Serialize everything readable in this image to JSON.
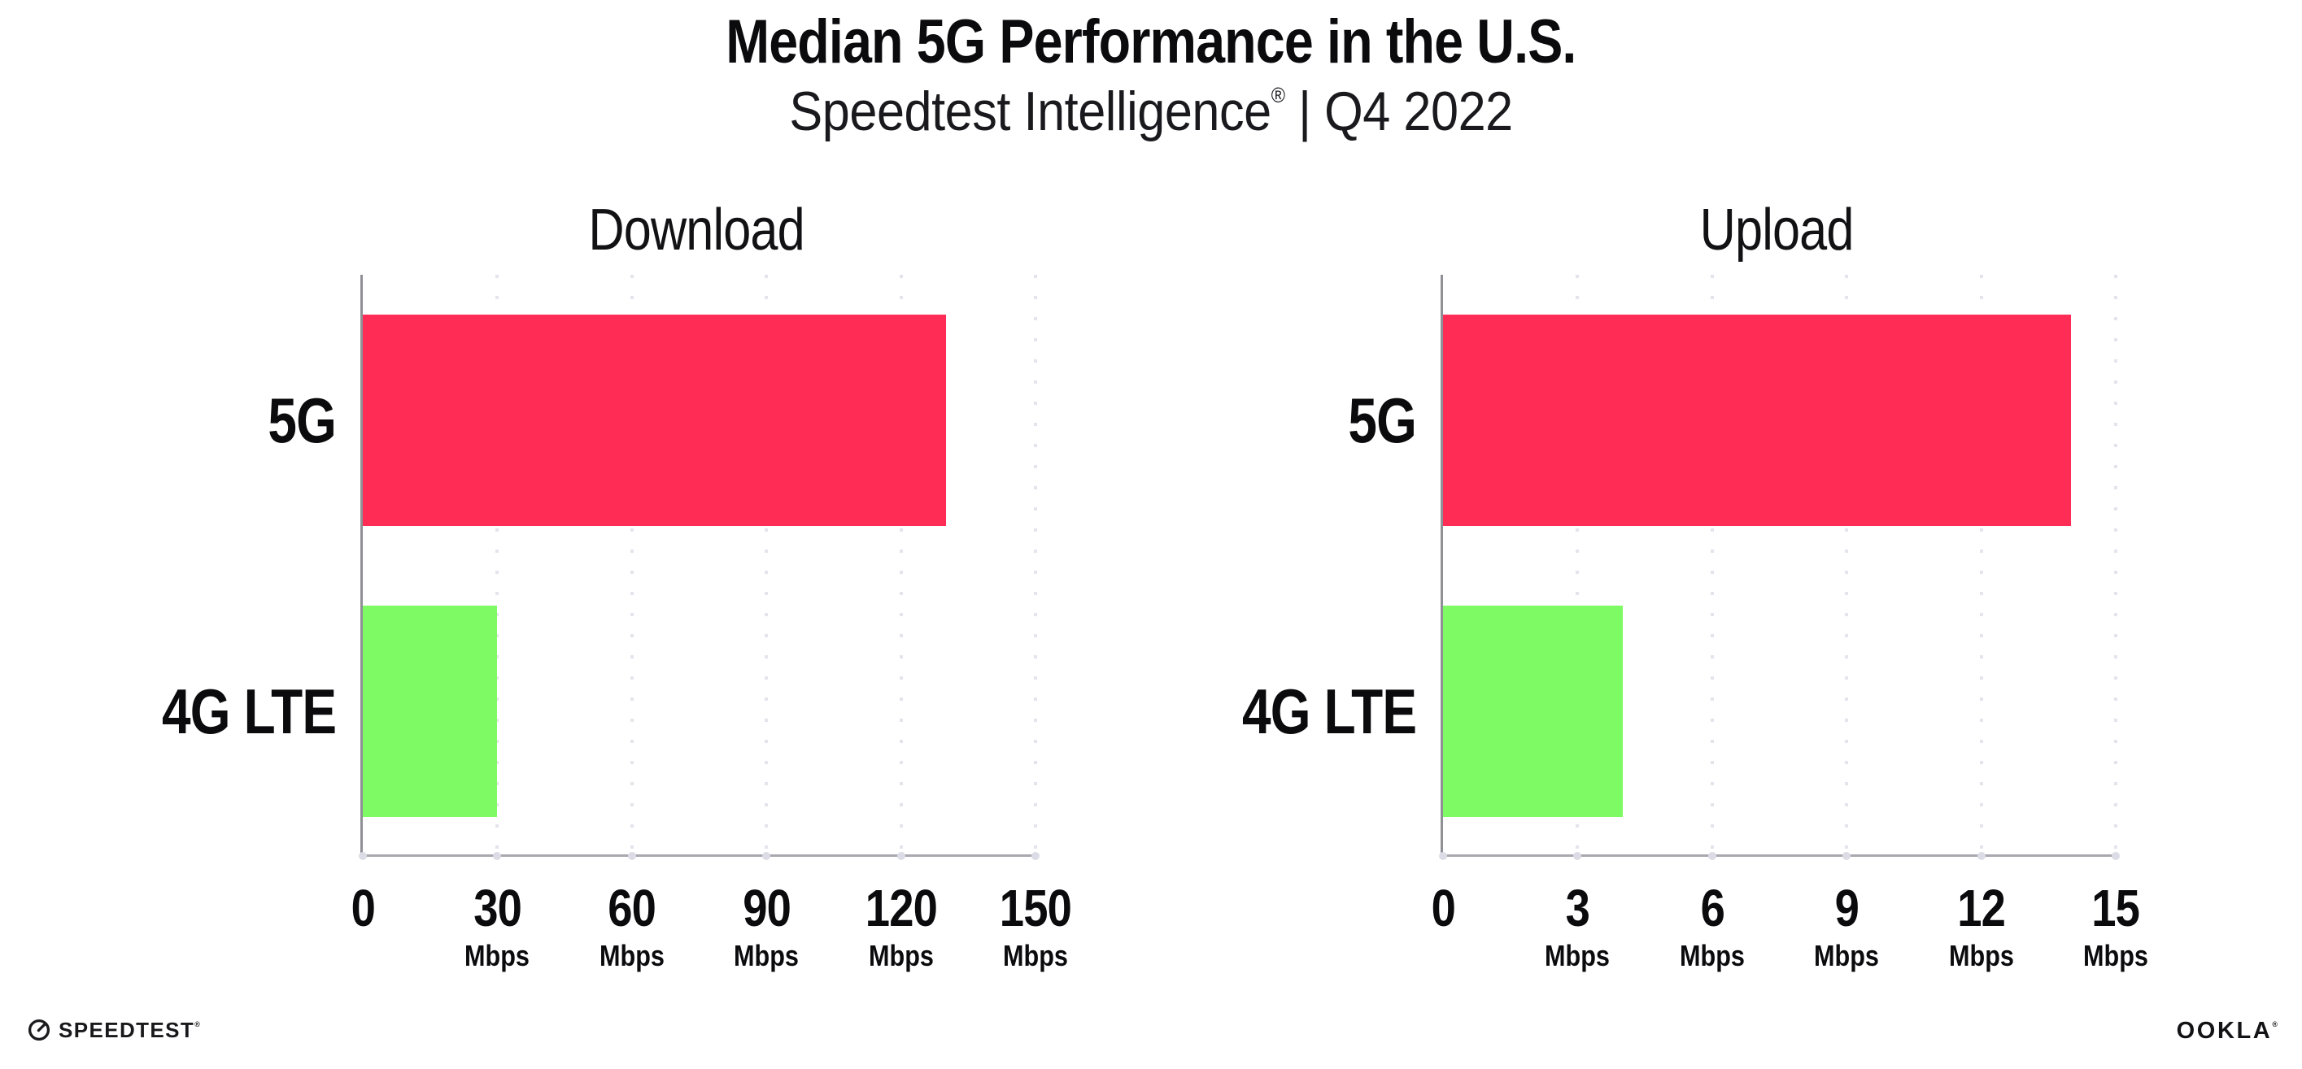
{
  "header": {
    "title": "Median 5G Performance in the U.S.",
    "subtitle_brand": "Speedtest Intelligence",
    "subtitle_reg": "®",
    "subtitle_separator": " | ",
    "subtitle_period": "Q4 2022"
  },
  "chart_data": [
    {
      "type": "bar",
      "orientation": "horizontal",
      "title": "Download",
      "categories": [
        "5G",
        "4G LTE"
      ],
      "values": [
        130,
        30
      ],
      "unit": "Mbps",
      "xlim": [
        0,
        150
      ],
      "xticks": [
        0,
        30,
        60,
        90,
        120,
        150
      ],
      "bar_colors": [
        "#FF2D56",
        "#7DFA64"
      ],
      "grid": "dotted-vertical",
      "legend": "none"
    },
    {
      "type": "bar",
      "orientation": "horizontal",
      "title": "Upload",
      "categories": [
        "5G",
        "4G LTE"
      ],
      "values": [
        14,
        4
      ],
      "unit": "Mbps",
      "xlim": [
        0,
        15
      ],
      "xticks": [
        0,
        3,
        6,
        9,
        12,
        15
      ],
      "bar_colors": [
        "#FF2D56",
        "#7DFA64"
      ],
      "grid": "dotted-vertical",
      "legend": "none"
    }
  ],
  "footer": {
    "speedtest_label": "SPEEDTEST",
    "speedtest_reg": "®",
    "ookla_label": "OOKLA",
    "ookla_reg": "®"
  },
  "colors": {
    "bar_5g": "#FF2D56",
    "bar_4g_lte": "#7DFA64",
    "axis": "#8F8F96",
    "grid_dot": "#E4E4EC",
    "text": "#0B0B0E"
  }
}
